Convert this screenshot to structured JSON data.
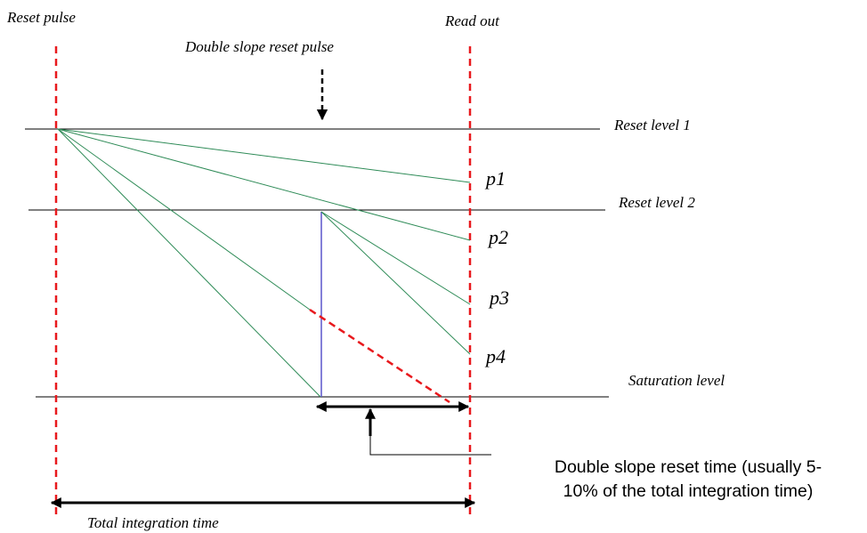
{
  "labels": {
    "reset_pulse": "Reset pulse",
    "read_out": "Read out",
    "double_slope_reset_pulse": "Double slope reset pulse",
    "reset_level_1": "Reset level 1",
    "reset_level_2": "Reset level 2",
    "saturation_level": "Saturation level",
    "total_integration_time": "Total integration time"
  },
  "pixels": {
    "p1": "p1",
    "p2": "p2",
    "p3": "p3",
    "p4": "p4"
  },
  "note": {
    "line1": "Double slope reset time (usually 5-",
    "line2": "10% of the total integration time)"
  },
  "colors": {
    "reset_marker": "#e8191d",
    "slope_line": "#2e8b57",
    "reset_jump": "#5a55cc",
    "level_line": "#000000",
    "arrow": "#000000"
  }
}
